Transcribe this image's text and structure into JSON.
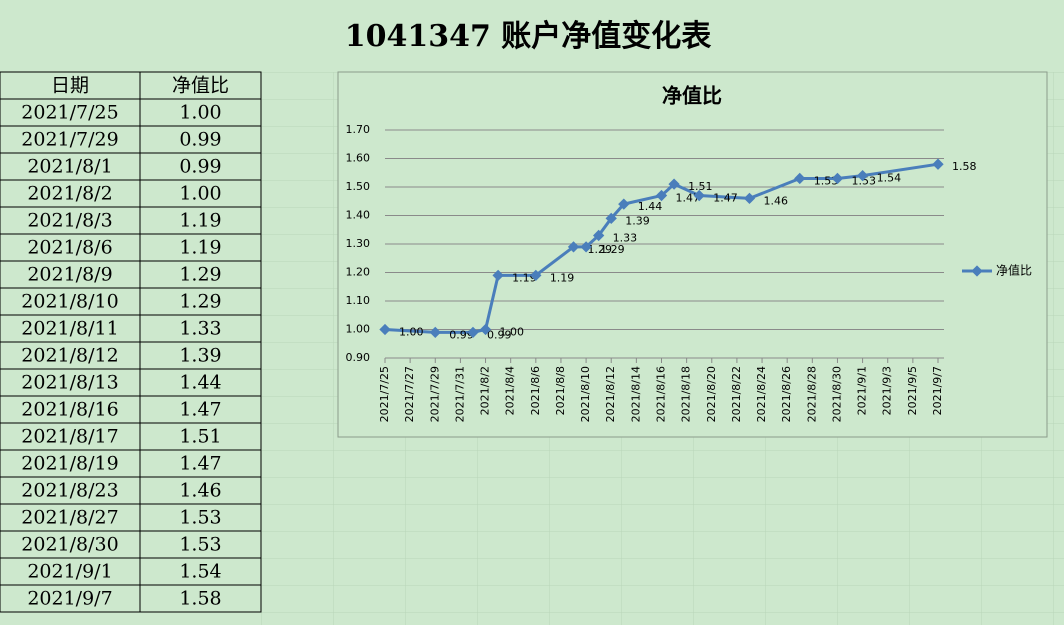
{
  "title": "1041347 账户净值变化表",
  "table": {
    "header": [
      "日期",
      "净值比"
    ],
    "rows": [
      [
        "2021/7/25",
        "1.00"
      ],
      [
        "2021/7/29",
        "0.99"
      ],
      [
        "2021/8/1",
        "0.99"
      ],
      [
        "2021/8/2",
        "1.00"
      ],
      [
        "2021/8/3",
        "1.19"
      ],
      [
        "2021/8/6",
        "1.19"
      ],
      [
        "2021/8/9",
        "1.29"
      ],
      [
        "2021/8/10",
        "1.29"
      ],
      [
        "2021/8/11",
        "1.33"
      ],
      [
        "2021/8/12",
        "1.39"
      ],
      [
        "2021/8/13",
        "1.44"
      ],
      [
        "2021/8/16",
        "1.47"
      ],
      [
        "2021/8/17",
        "1.51"
      ],
      [
        "2021/8/19",
        "1.47"
      ],
      [
        "2021/8/23",
        "1.46"
      ],
      [
        "2021/8/27",
        "1.53"
      ],
      [
        "2021/8/30",
        "1.53"
      ],
      [
        "2021/9/1",
        "1.54"
      ],
      [
        "2021/9/7",
        "1.58"
      ]
    ]
  },
  "chart_data": {
    "type": "line",
    "title": "净值比",
    "x": [
      "2021/7/25",
      "2021/7/29",
      "2021/8/1",
      "2021/8/2",
      "2021/8/3",
      "2021/8/6",
      "2021/8/9",
      "2021/8/10",
      "2021/8/11",
      "2021/8/12",
      "2021/8/13",
      "2021/8/16",
      "2021/8/17",
      "2021/8/19",
      "2021/8/23",
      "2021/8/27",
      "2021/8/30",
      "2021/9/1",
      "2021/9/7"
    ],
    "series": [
      {
        "name": "净值比",
        "color": "#4a7ebb",
        "values": [
          1.0,
          0.99,
          0.99,
          1.0,
          1.19,
          1.19,
          1.29,
          1.29,
          1.33,
          1.39,
          1.44,
          1.47,
          1.51,
          1.47,
          1.46,
          1.53,
          1.53,
          1.54,
          1.58
        ],
        "value_labels": [
          "1.00",
          "0.99",
          "0.99",
          "1.00",
          "1.19",
          "1.19",
          "1.29",
          "1.29",
          "1.33",
          "1.39",
          "1.44",
          "1.47",
          "1.51",
          "1.47",
          "1.46",
          "1.53",
          "1.53",
          "1.54",
          "1.58"
        ]
      }
    ],
    "xlim": [
      "2021/7/25",
      "2021/9/7"
    ],
    "xticks": [
      "2021/7/25",
      "2021/7/27",
      "2021/7/29",
      "2021/7/31",
      "2021/8/2",
      "2021/8/4",
      "2021/8/6",
      "2021/8/8",
      "2021/8/10",
      "2021/8/12",
      "2021/8/14",
      "2021/8/16",
      "2021/8/18",
      "2021/8/20",
      "2021/8/22",
      "2021/8/24",
      "2021/8/26",
      "2021/8/28",
      "2021/8/30",
      "2021/9/1",
      "2021/9/3",
      "2021/9/5",
      "2021/9/7"
    ],
    "ylim": [
      0.9,
      1.7
    ],
    "yticks": [
      {
        "value": 0.9,
        "label": "0.90"
      },
      {
        "value": 1.0,
        "label": "1.00"
      },
      {
        "value": 1.1,
        "label": "1.10"
      },
      {
        "value": 1.2,
        "label": "1.20"
      },
      {
        "value": 1.3,
        "label": "1.30"
      },
      {
        "value": 1.4,
        "label": "1.40"
      },
      {
        "value": 1.5,
        "label": "1.50"
      },
      {
        "value": 1.6,
        "label": "1.60"
      },
      {
        "value": 1.7,
        "label": "1.70"
      }
    ],
    "grid": true,
    "legend": "right"
  }
}
